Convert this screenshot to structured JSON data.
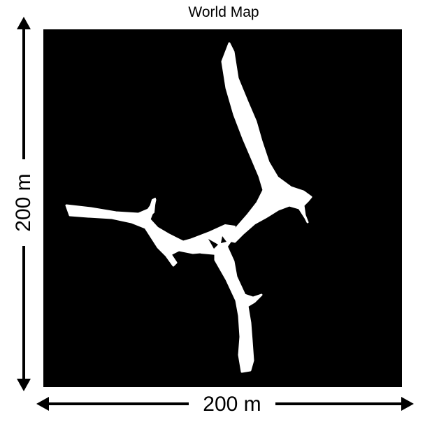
{
  "title": "World Map",
  "dimensions": {
    "width_label": "200 m",
    "height_label": "200 m"
  },
  "map": {
    "background_color": "#000000",
    "free_space_color": "#ffffff"
  }
}
